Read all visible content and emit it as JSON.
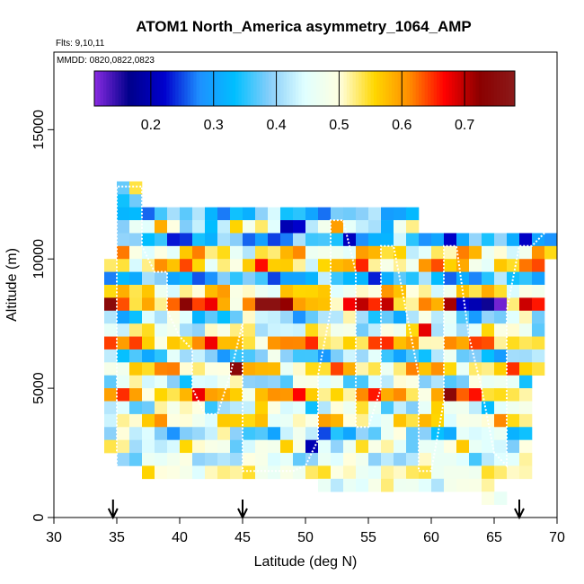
{
  "chart_data": {
    "type": "heatmap",
    "title": "ATOM1 North_America asymmetry_1064_AMP",
    "flights_note": "Flts: 9,10,11",
    "date_note": "MMDD: 0820,0822,0823",
    "xlabel": "Latitude (deg N)",
    "ylabel": "Altitude (m)",
    "xlim": [
      30,
      70
    ],
    "ylim": [
      0,
      18000
    ],
    "x_ticks": [
      30,
      35,
      40,
      45,
      50,
      55,
      60,
      65,
      70
    ],
    "y_ticks": [
      0,
      5000,
      10000,
      15000
    ],
    "colorbar": {
      "range": [
        0.11,
        0.78
      ],
      "ticks": [
        0.2,
        0.3,
        0.4,
        0.5,
        0.6,
        0.7
      ],
      "tick_labels": [
        "0.2",
        "0.3",
        "0.4",
        "0.5",
        "0.6",
        "0.7"
      ],
      "stops": [
        "#8a2be2",
        "#00008b",
        "#0000cd",
        "#1e90ff",
        "#00bfff",
        "#87cefa",
        "#e0ffff",
        "#ffffe0",
        "#ffd700",
        "#ff8c00",
        "#ff0000",
        "#8b0000",
        "#8b1a1a"
      ]
    },
    "cell_size": {
      "lat_deg": 1.0,
      "alt_m": 500
    },
    "bands": [
      {
        "alt": 12500,
        "lat_from": 35,
        "lat_to": 37,
        "base": 0.42,
        "amp": 0.14
      },
      {
        "alt": 12000,
        "lat_from": 35,
        "lat_to": 37,
        "base": 0.3,
        "amp": 0.12
      },
      {
        "alt": 11500,
        "lat_from": 35,
        "lat_to": 59,
        "base": 0.35,
        "amp": 0.1
      },
      {
        "alt": 11000,
        "lat_from": 35,
        "lat_to": 59,
        "base": 0.45,
        "amp": 0.15
      },
      {
        "alt": 10500,
        "lat_from": 35,
        "lat_to": 70,
        "base": 0.32,
        "amp": 0.12
      },
      {
        "alt": 10000,
        "lat_from": 35,
        "lat_to": 70,
        "base": 0.52,
        "amp": 0.12
      },
      {
        "alt": 9500,
        "lat_from": 34,
        "lat_to": 69,
        "base": 0.55,
        "amp": 0.12
      },
      {
        "alt": 9000,
        "lat_from": 34,
        "lat_to": 69,
        "base": 0.33,
        "amp": 0.1
      },
      {
        "alt": 8500,
        "lat_from": 34,
        "lat_to": 69,
        "base": 0.52,
        "amp": 0.1
      },
      {
        "alt": 8000,
        "lat_from": 34,
        "lat_to": 69,
        "base": 0.62,
        "amp": 0.14
      },
      {
        "alt": 7500,
        "lat_from": 34,
        "lat_to": 69,
        "base": 0.4,
        "amp": 0.12
      },
      {
        "alt": 7000,
        "lat_from": 34,
        "lat_to": 69,
        "base": 0.47,
        "amp": 0.1
      },
      {
        "alt": 6500,
        "lat_from": 34,
        "lat_to": 69,
        "base": 0.58,
        "amp": 0.1
      },
      {
        "alt": 6000,
        "lat_from": 34,
        "lat_to": 69,
        "base": 0.38,
        "amp": 0.1
      },
      {
        "alt": 5500,
        "lat_from": 34,
        "lat_to": 69,
        "base": 0.55,
        "amp": 0.1
      },
      {
        "alt": 5000,
        "lat_from": 34,
        "lat_to": 68,
        "base": 0.43,
        "amp": 0.1
      },
      {
        "alt": 4500,
        "lat_from": 34,
        "lat_to": 68,
        "base": 0.58,
        "amp": 0.1
      },
      {
        "alt": 4000,
        "lat_from": 34,
        "lat_to": 68,
        "base": 0.45,
        "amp": 0.12
      },
      {
        "alt": 3500,
        "lat_from": 34,
        "lat_to": 68,
        "base": 0.52,
        "amp": 0.1
      },
      {
        "alt": 3000,
        "lat_from": 34,
        "lat_to": 68,
        "base": 0.4,
        "amp": 0.12
      },
      {
        "alt": 2500,
        "lat_from": 34,
        "lat_to": 68,
        "base": 0.47,
        "amp": 0.1
      },
      {
        "alt": 2000,
        "lat_from": 35,
        "lat_to": 68,
        "base": 0.44,
        "amp": 0.08
      },
      {
        "alt": 1500,
        "lat_from": 37,
        "lat_to": 68,
        "base": 0.5,
        "amp": 0.06
      },
      {
        "alt": 1000,
        "lat_from": 51,
        "lat_to": 65,
        "base": 0.47,
        "amp": 0.06
      },
      {
        "alt": 500,
        "lat_from": 64,
        "lat_to": 66,
        "base": 0.5,
        "amp": 0.04
      }
    ],
    "highlights": [
      {
        "lat": 46,
        "alt": 8000,
        "value": 0.76
      },
      {
        "lat": 47,
        "alt": 8000,
        "value": 0.76
      },
      {
        "lat": 48,
        "alt": 8000,
        "value": 0.72
      },
      {
        "lat": 44,
        "alt": 5500,
        "value": 0.74
      },
      {
        "lat": 64,
        "alt": 8000,
        "value": 0.16
      },
      {
        "lat": 62,
        "alt": 8000,
        "value": 0.22
      },
      {
        "lat": 63,
        "alt": 8000,
        "value": 0.2
      },
      {
        "lat": 65,
        "alt": 8000,
        "value": 0.12
      },
      {
        "lat": 48,
        "alt": 11000,
        "value": 0.2
      },
      {
        "lat": 49,
        "alt": 11000,
        "value": 0.22
      },
      {
        "lat": 50,
        "alt": 2500,
        "value": 0.2
      },
      {
        "lat": 51,
        "alt": 3000,
        "value": 0.25
      },
      {
        "lat": 61,
        "alt": 4500,
        "value": 0.74
      },
      {
        "lat": 59,
        "alt": 7000,
        "value": 0.68
      }
    ],
    "flight_track": [
      [
        35,
        2000
      ],
      [
        35,
        12800
      ],
      [
        37,
        12800
      ],
      [
        37,
        10500
      ],
      [
        38,
        9500
      ],
      [
        39,
        9500
      ],
      [
        39,
        8000
      ],
      [
        40,
        7000
      ],
      [
        41,
        6500
      ],
      [
        41,
        5000
      ],
      [
        42,
        4000
      ],
      [
        43,
        4000
      ],
      [
        44,
        5500
      ],
      [
        45,
        7500
      ],
      [
        45,
        1800
      ],
      [
        49,
        1800
      ],
      [
        50,
        2000
      ],
      [
        51,
        3000
      ],
      [
        51,
        5500
      ],
      [
        52,
        8000
      ],
      [
        52,
        11500
      ],
      [
        53,
        11500
      ],
      [
        54,
        9500
      ],
      [
        54,
        3500
      ],
      [
        55,
        3500
      ],
      [
        56,
        5000
      ],
      [
        56,
        10500
      ],
      [
        57,
        10500
      ],
      [
        58,
        8000
      ],
      [
        59,
        5500
      ],
      [
        59,
        1800
      ],
      [
        60,
        1800
      ],
      [
        61,
        4500
      ],
      [
        61,
        10500
      ],
      [
        62,
        10500
      ],
      [
        63,
        7000
      ],
      [
        64,
        5000
      ],
      [
        65,
        2500
      ],
      [
        66,
        2000
      ],
      [
        66,
        8000
      ],
      [
        67,
        10500
      ],
      [
        68,
        10500
      ],
      [
        69,
        11000
      ],
      [
        70,
        11200
      ]
    ],
    "arrow_latitudes": [
      34.7,
      45.0,
      67.0
    ]
  }
}
